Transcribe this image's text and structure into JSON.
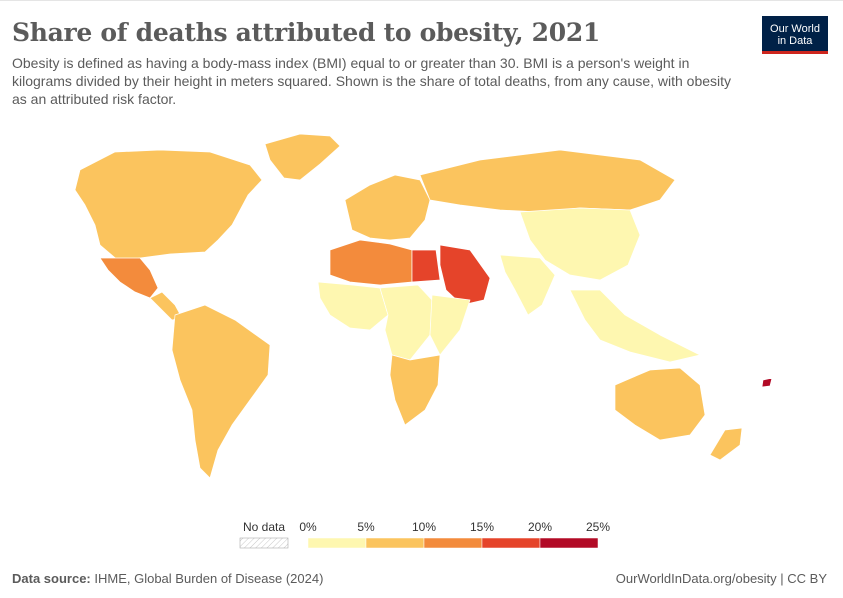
{
  "header": {
    "title": "Share of deaths attributed to obesity, 2021",
    "subtitle": "Obesity is defined as having a body-mass index (BMI) equal to or greater than 30. BMI is a person's weight in kilograms divided by their height in meters squared. Shown is the share of total deaths, from any cause, with obesity as an attributed risk factor.",
    "logo_line1": "Our World",
    "logo_line2": "in Data"
  },
  "legend": {
    "no_data_label": "No data",
    "ticks": [
      "0%",
      "5%",
      "10%",
      "15%",
      "20%",
      "25%"
    ],
    "bins": [
      {
        "range": "0-5%",
        "color": "#fef7b0"
      },
      {
        "range": "5-10%",
        "color": "#fbc45e"
      },
      {
        "range": "10-15%",
        "color": "#f38b3c"
      },
      {
        "range": "15-20%",
        "color": "#e5442a"
      },
      {
        "range": "20-25%",
        "color": "#b20a26"
      }
    ]
  },
  "footer": {
    "source_label": "Data source:",
    "source_text": "IHME, Global Burden of Disease (2024)",
    "url_license": "OurWorldInData.org/obesity | CC BY"
  },
  "colors": {
    "band1": "#fef7b0",
    "band2": "#fbc45e",
    "band3": "#f38b3c",
    "band4": "#e5442a",
    "band5": "#b20a26",
    "no_data": "#e8e8e8"
  },
  "map_regions": [
    {
      "name": "north-america",
      "band": 2
    },
    {
      "name": "mexico",
      "band": 3
    },
    {
      "name": "central-america",
      "band": 2
    },
    {
      "name": "south-america",
      "band": 2
    },
    {
      "name": "greenland",
      "band": 2
    },
    {
      "name": "europe",
      "band": 2
    },
    {
      "name": "russia",
      "band": 2
    },
    {
      "name": "north-africa",
      "band": 3
    },
    {
      "name": "egypt",
      "band": 4
    },
    {
      "name": "arabian-peninsula",
      "band": 4
    },
    {
      "name": "west-africa",
      "band": 1
    },
    {
      "name": "central-africa",
      "band": 1
    },
    {
      "name": "east-africa",
      "band": 1
    },
    {
      "name": "southern-africa",
      "band": 2
    },
    {
      "name": "china",
      "band": 1
    },
    {
      "name": "india",
      "band": 1
    },
    {
      "name": "southeast-asia",
      "band": 1
    },
    {
      "name": "australia",
      "band": 2
    },
    {
      "name": "new-zealand",
      "band": 2
    },
    {
      "name": "pacific-islands",
      "band": 5
    }
  ]
}
